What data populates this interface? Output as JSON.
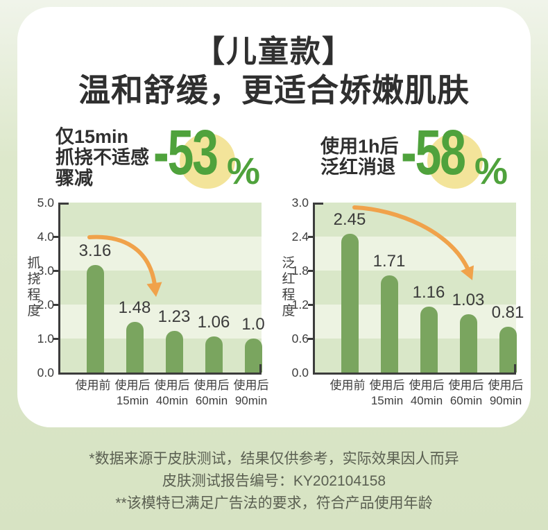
{
  "page": {
    "title": "【儿童款】",
    "subtitle": "温和舒缓，更适合娇嫩肌肤"
  },
  "stats": [
    {
      "lines": [
        "仅15min",
        "抓挠不适感",
        "骤减"
      ],
      "value": "-53",
      "unit": "%"
    },
    {
      "lines": [
        "使用1h后",
        "泛红消退"
      ],
      "value": "-58",
      "unit": "%"
    }
  ],
  "chart_data": [
    {
      "type": "bar",
      "title": "",
      "ylabel": "抓挠程度",
      "xlabel": "",
      "categories": [
        "使用前",
        "使用后\n15min",
        "使用后\n40min",
        "使用后\n60min",
        "使用后\n90min"
      ],
      "values": [
        3.16,
        1.48,
        1.23,
        1.06,
        1.0
      ],
      "value_labels": [
        "3.16",
        "1.48",
        "1.23",
        "1.06",
        "1.0"
      ],
      "ylim": [
        0,
        5
      ],
      "ytick_labels": [
        "5.0",
        "4.0",
        "3.0",
        "2.0",
        "1.0",
        "0.0"
      ],
      "grid": "horizontal-bands",
      "legend": "none",
      "annotation": "orange-curved-arrow-down"
    },
    {
      "type": "bar",
      "title": "",
      "ylabel": "泛红程度",
      "xlabel": "",
      "categories": [
        "使用前",
        "使用后\n15min",
        "使用后\n40min",
        "使用后\n60min",
        "使用后\n90min"
      ],
      "values": [
        2.45,
        1.71,
        1.16,
        1.03,
        0.81
      ],
      "value_labels": [
        "2.45",
        "1.71",
        "1.16",
        "1.03",
        "0.81"
      ],
      "ylim": [
        0,
        3
      ],
      "ytick_labels": [
        "3.0",
        "2.4",
        "1.8",
        "1.2",
        "0.6",
        "0.0"
      ],
      "grid": "horizontal-bands",
      "legend": "none",
      "annotation": "orange-curved-arrow-down"
    }
  ],
  "footnotes": [
    "*数据来源于皮肤测试，结果仅供参考，实际效果因人而异",
    "皮肤测试报告编号：KY202104158",
    "**该模特已满足广告法的要求，符合产品使用年龄"
  ],
  "colors": {
    "accent_green": "#4fa23c",
    "bar_green": "#7aa55f",
    "band_dark": "#d9e7c8",
    "band_light": "#edf3e2",
    "arrow_orange": "#f0a24b",
    "circle_yellow": "#f3e49a",
    "axis": "#3c3c3c",
    "text_dark": "#2f2f2f",
    "footer_text": "#5a5f51",
    "card_bg": "#ffffff",
    "page_bg_top": "#f0f4ea",
    "page_bg_bottom": "#d7e3c3"
  }
}
